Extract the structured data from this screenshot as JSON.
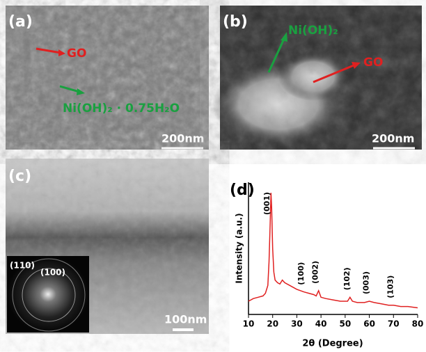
{
  "panels": {
    "a": {
      "label": "(a)",
      "go": "GO",
      "ni": "Ni(OH)₂ · 0.75H₂O",
      "scale": "200nm"
    },
    "b": {
      "label": "(b)",
      "ni": "Ni(OH)₂",
      "go": "GO",
      "scale": "200nm"
    },
    "c": {
      "label": "(c)",
      "ring1": "(110)",
      "ring2": "(100)",
      "scale": "100nm"
    }
  },
  "chart_data": {
    "type": "line",
    "label": "(d)",
    "xlabel": "2θ (Degree)",
    "ylabel": "Intensity (a.u.)",
    "color": "#e02020",
    "x": [
      10,
      12,
      14,
      16,
      17,
      18,
      18.5,
      19,
      19.3,
      19.6,
      20,
      20.5,
      21,
      22,
      23,
      24,
      25,
      27,
      30,
      33,
      35,
      37,
      38,
      39,
      40,
      42,
      45,
      48,
      50,
      51,
      52,
      53,
      55,
      58,
      60,
      62,
      65,
      68,
      70,
      73,
      76,
      80
    ],
    "values": [
      10,
      12,
      13,
      14,
      16,
      22,
      40,
      70,
      92,
      80,
      50,
      32,
      26,
      24,
      23,
      26,
      24,
      22,
      19,
      17,
      16,
      15,
      14,
      18,
      13,
      12,
      11,
      10,
      10,
      10,
      13,
      10,
      9,
      9,
      10,
      9,
      8,
      7,
      7,
      6,
      6,
      5
    ],
    "xlim": [
      10,
      80
    ],
    "xticks": [
      10,
      20,
      30,
      40,
      50,
      60,
      70,
      80
    ],
    "ylim": [
      0,
      100
    ],
    "annotations": [
      {
        "text": "(001)",
        "x": 19
      },
      {
        "text": "(100)",
        "x": 33
      },
      {
        "text": "(002)",
        "x": 39
      },
      {
        "text": "(102)",
        "x": 52
      },
      {
        "text": "(003)",
        "x": 60
      },
      {
        "text": "(103)",
        "x": 70
      }
    ]
  }
}
